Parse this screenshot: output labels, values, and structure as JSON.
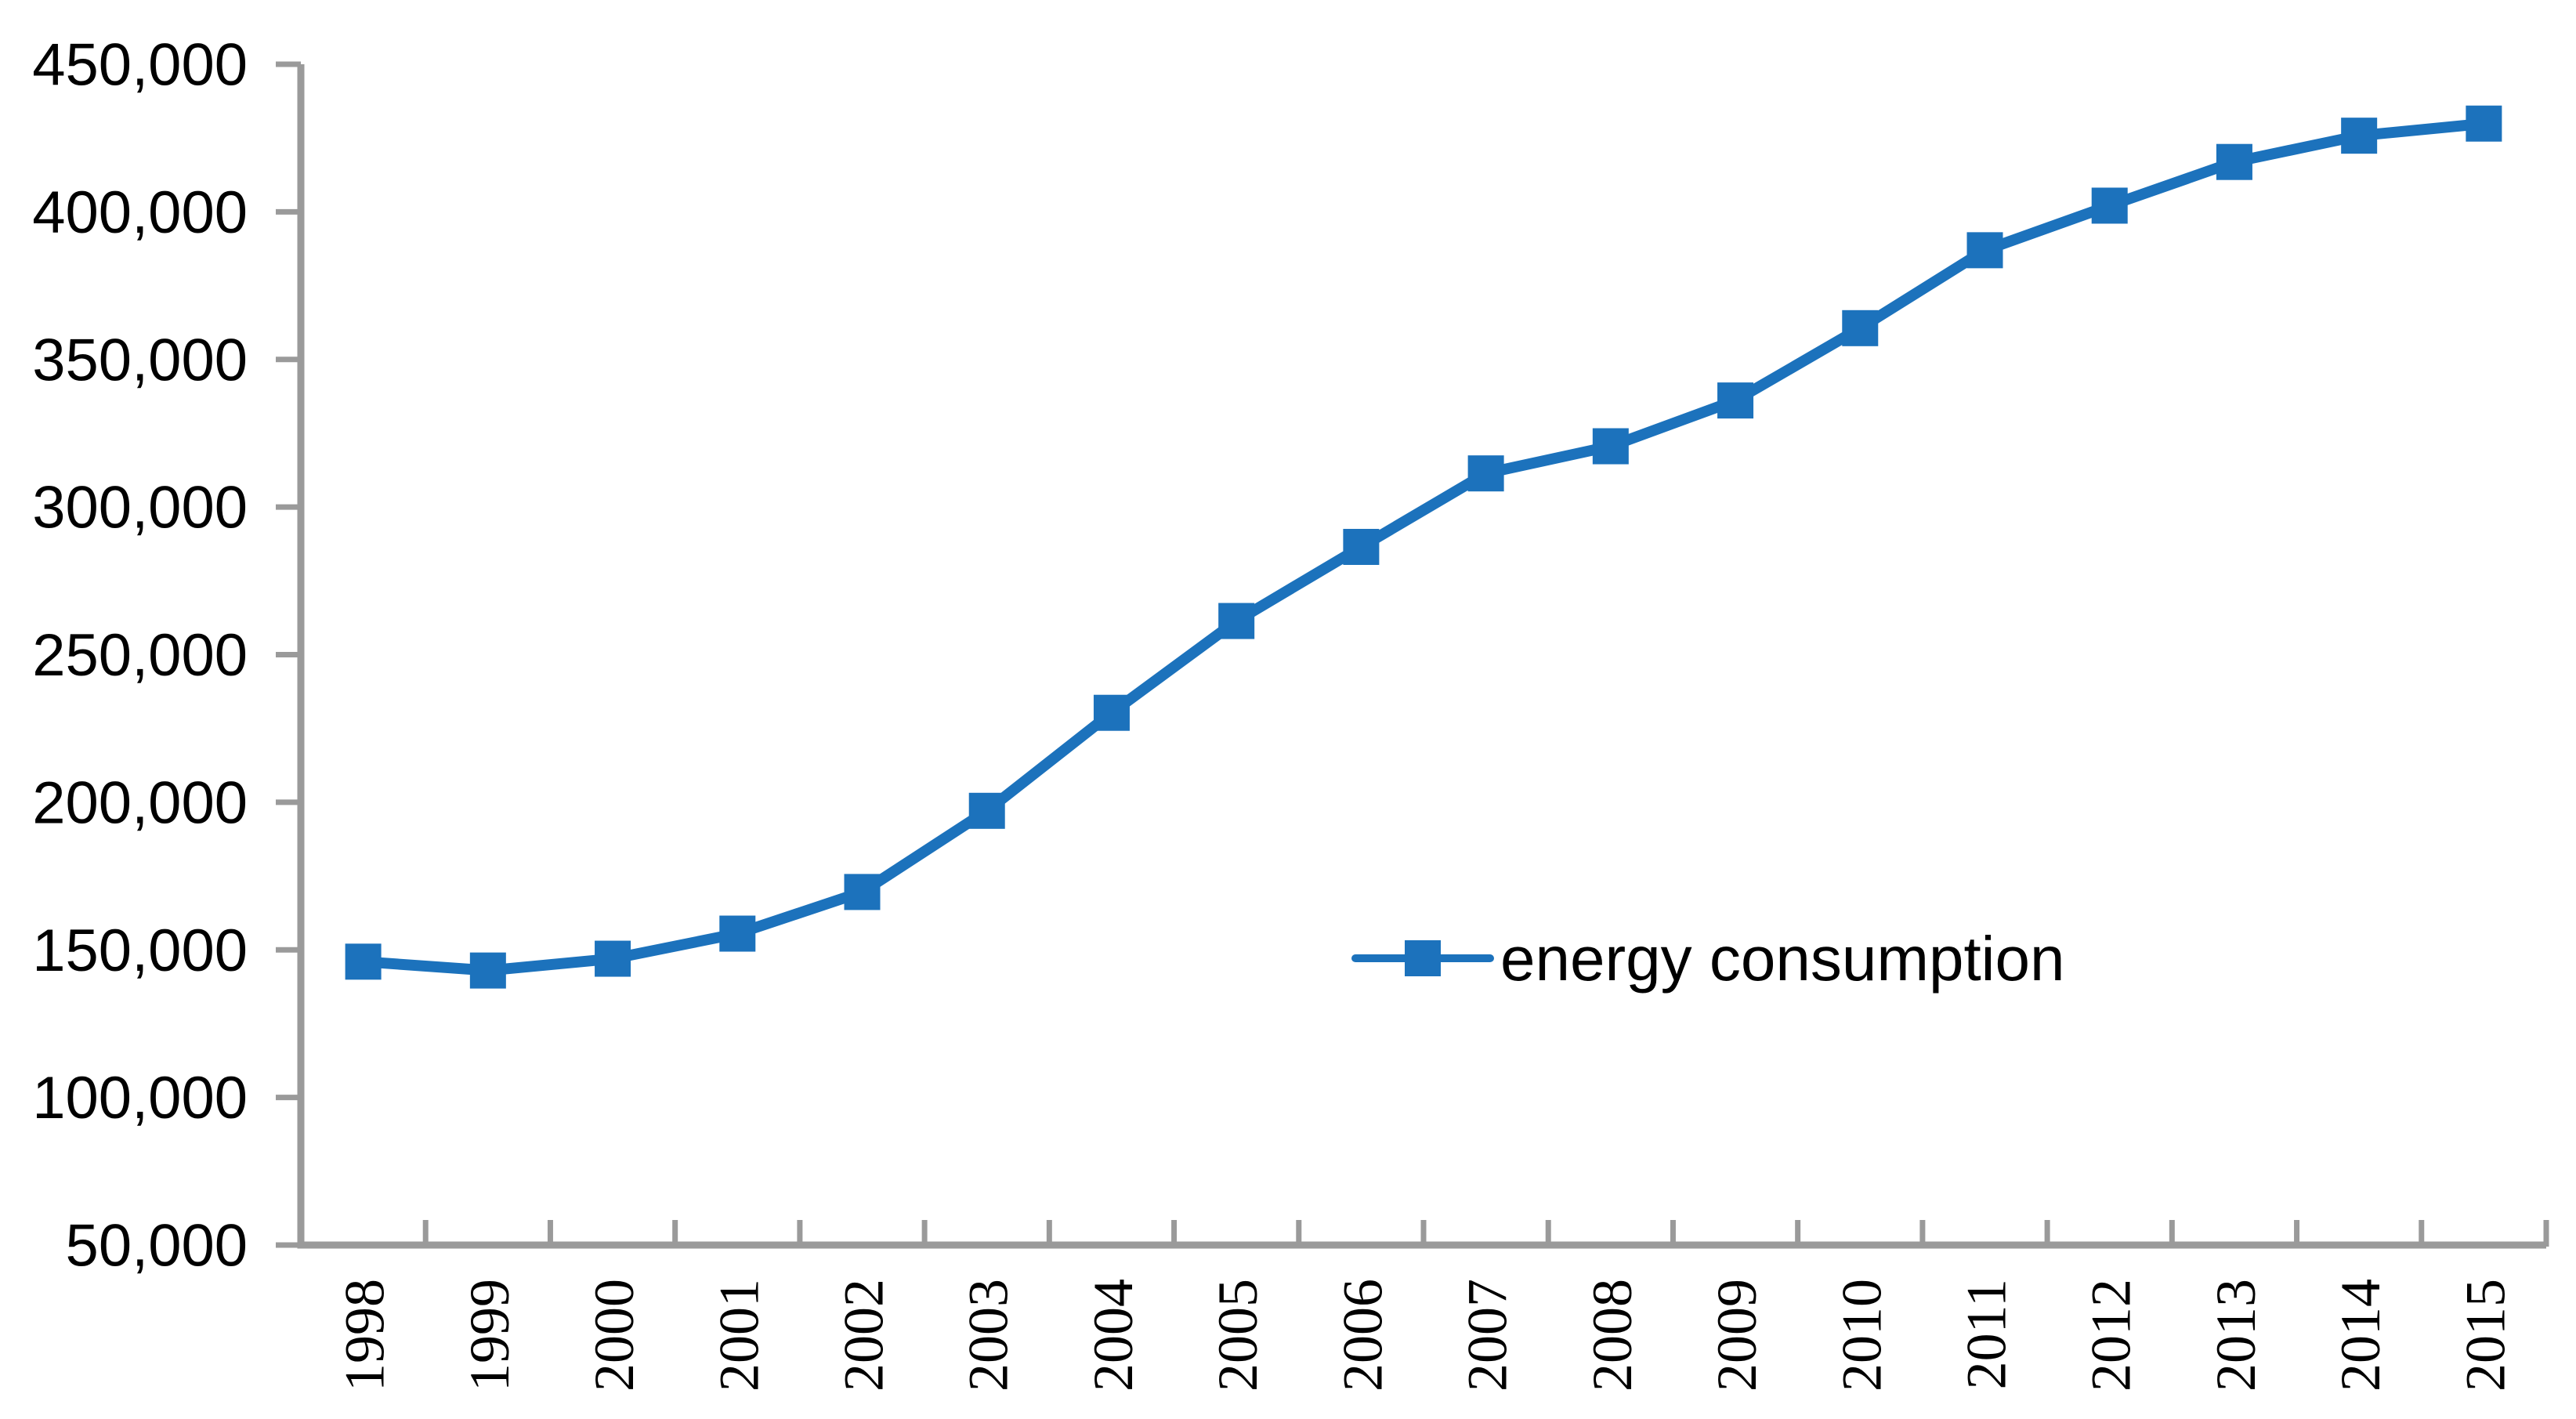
{
  "chart_data": {
    "type": "line",
    "title": "",
    "xlabel": "",
    "ylabel": "",
    "categories": [
      "1998",
      "1999",
      "2000",
      "2001",
      "2002",
      "2003",
      "2004",
      "2005",
      "2006",
      "2007",
      "2008",
      "2009",
      "2010",
      "2011",
      "2012",
      "2013",
      "2014",
      "2015"
    ],
    "series": [
      {
        "name": "energy consumption",
        "marker": "square",
        "color": "#1C72BC",
        "values": [
          146000,
          143000,
          147000,
          155500,
          169600,
          197100,
          230300,
          261400,
          286500,
          311400,
          320600,
          336100,
          360600,
          387000,
          402100,
          416900,
          425800,
          429900
        ]
      }
    ],
    "ylim": [
      50000,
      450000
    ],
    "ytick_step": 50000,
    "ytick_labels": [
      "50,000",
      "100,000",
      "150,000",
      "200,000",
      "250,000",
      "300,000",
      "350,000",
      "400,000",
      "450,000"
    ],
    "grid": false,
    "legend": {
      "label": "energy consumption",
      "position": "inside-center-right"
    },
    "axis_color": "#9A9A9A",
    "text_color": "#000000",
    "background_color": "#FFFFFF"
  }
}
